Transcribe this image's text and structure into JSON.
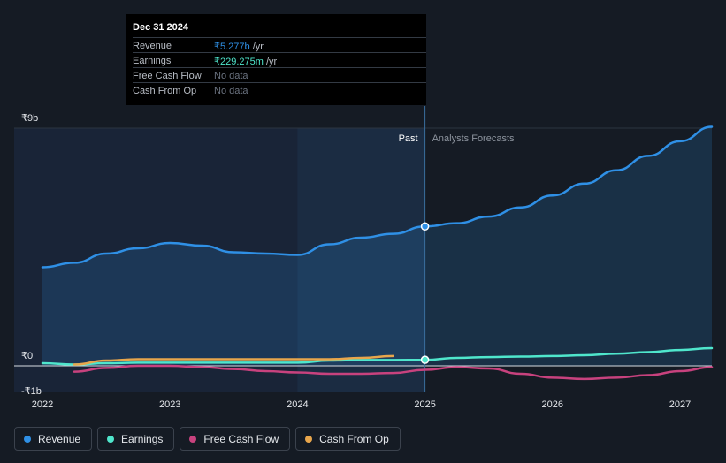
{
  "chart_data": {
    "type": "line",
    "title": "",
    "xlabel": "",
    "ylabel": "",
    "x_ticks": [
      "2022",
      "2023",
      "2024",
      "2025",
      "2026",
      "2027"
    ],
    "y_ticks": [
      {
        "value": 9,
        "label": "₹9b"
      },
      {
        "value": 0,
        "label": "₹0"
      },
      {
        "value": -1,
        "label": "-₹1b"
      }
    ],
    "ylim": [
      -1,
      9
    ],
    "xlim": [
      2022.0,
      2027.25
    ],
    "split_x": 2025.0,
    "forecast_shade_start": 2024.0,
    "past_label": "Past",
    "forecast_label": "Analysts Forecasts",
    "series": [
      {
        "name": "Revenue",
        "color": "#2f90e6",
        "area": true,
        "points": [
          [
            2022.0,
            3.73
          ],
          [
            2022.25,
            3.9
          ],
          [
            2022.5,
            4.25
          ],
          [
            2022.75,
            4.45
          ],
          [
            2023.0,
            4.65
          ],
          [
            2023.25,
            4.55
          ],
          [
            2023.5,
            4.3
          ],
          [
            2023.75,
            4.25
          ],
          [
            2024.0,
            4.2
          ],
          [
            2024.25,
            4.6
          ],
          [
            2024.5,
            4.85
          ],
          [
            2024.75,
            5.0
          ],
          [
            2025.0,
            5.277
          ],
          [
            2025.25,
            5.4
          ],
          [
            2025.5,
            5.65
          ],
          [
            2025.75,
            6.0
          ],
          [
            2026.0,
            6.45
          ],
          [
            2026.25,
            6.9
          ],
          [
            2026.5,
            7.4
          ],
          [
            2026.75,
            7.95
          ],
          [
            2027.0,
            8.5
          ],
          [
            2027.25,
            9.05
          ]
        ]
      },
      {
        "name": "Earnings",
        "color": "#4fe6cc",
        "area": false,
        "points": [
          [
            2022.0,
            0.1
          ],
          [
            2022.25,
            0.05
          ],
          [
            2022.5,
            0.1
          ],
          [
            2022.75,
            0.12
          ],
          [
            2023.0,
            0.12
          ],
          [
            2023.25,
            0.12
          ],
          [
            2023.5,
            0.12
          ],
          [
            2023.75,
            0.12
          ],
          [
            2024.0,
            0.12
          ],
          [
            2024.25,
            0.2
          ],
          [
            2024.5,
            0.22
          ],
          [
            2024.75,
            0.22
          ],
          [
            2025.0,
            0.229
          ],
          [
            2025.25,
            0.3
          ],
          [
            2025.5,
            0.33
          ],
          [
            2025.75,
            0.35
          ],
          [
            2026.0,
            0.37
          ],
          [
            2026.25,
            0.4
          ],
          [
            2026.5,
            0.46
          ],
          [
            2026.75,
            0.52
          ],
          [
            2027.0,
            0.6
          ],
          [
            2027.25,
            0.67
          ]
        ]
      },
      {
        "name": "Free Cash Flow",
        "color": "#c8427e",
        "area": false,
        "points": [
          [
            2022.25,
            -0.22
          ],
          [
            2022.5,
            -0.08
          ],
          [
            2022.75,
            0.0
          ],
          [
            2023.0,
            0.0
          ],
          [
            2023.25,
            -0.05
          ],
          [
            2023.5,
            -0.12
          ],
          [
            2023.75,
            -0.2
          ],
          [
            2024.0,
            -0.25
          ],
          [
            2024.25,
            -0.3
          ],
          [
            2024.5,
            -0.3
          ],
          [
            2024.75,
            -0.27
          ],
          [
            2025.0,
            -0.15
          ],
          [
            2025.25,
            -0.05
          ],
          [
            2025.5,
            -0.1
          ],
          [
            2025.75,
            -0.3
          ],
          [
            2026.0,
            -0.45
          ],
          [
            2026.25,
            -0.5
          ],
          [
            2026.5,
            -0.45
          ],
          [
            2026.75,
            -0.35
          ],
          [
            2027.0,
            -0.2
          ],
          [
            2027.25,
            -0.05
          ]
        ]
      },
      {
        "name": "Cash From Op",
        "color": "#e8a64c",
        "area": false,
        "points": [
          [
            2022.25,
            0.05
          ],
          [
            2022.5,
            0.2
          ],
          [
            2022.75,
            0.25
          ],
          [
            2023.0,
            0.25
          ],
          [
            2023.25,
            0.25
          ],
          [
            2023.5,
            0.25
          ],
          [
            2023.75,
            0.25
          ],
          [
            2024.0,
            0.25
          ],
          [
            2024.25,
            0.25
          ],
          [
            2024.5,
            0.3
          ],
          [
            2024.75,
            0.37
          ]
        ]
      }
    ],
    "highlight_points": [
      {
        "series": "Revenue",
        "x": 2025.0,
        "y": 5.277
      },
      {
        "series": "Earnings",
        "x": 2025.0,
        "y": 0.229
      }
    ]
  },
  "tooltip": {
    "date": "Dec 31 2024",
    "rows": [
      {
        "label": "Revenue",
        "value": "₹5.277b",
        "unit": " /yr",
        "color": "#2f90e6"
      },
      {
        "label": "Earnings",
        "value": "₹229.275m",
        "unit": " /yr",
        "color": "#4fe6cc"
      },
      {
        "label": "Free Cash Flow",
        "value": "No data",
        "unit": "",
        "color": "#6b7380"
      },
      {
        "label": "Cash From Op",
        "value": "No data",
        "unit": "",
        "color": "#6b7380"
      }
    ]
  },
  "legend": [
    {
      "label": "Revenue",
      "color": "#2f90e6"
    },
    {
      "label": "Earnings",
      "color": "#4fe6cc"
    },
    {
      "label": "Free Cash Flow",
      "color": "#c8427e"
    },
    {
      "label": "Cash From Op",
      "color": "#e8a64c"
    }
  ]
}
